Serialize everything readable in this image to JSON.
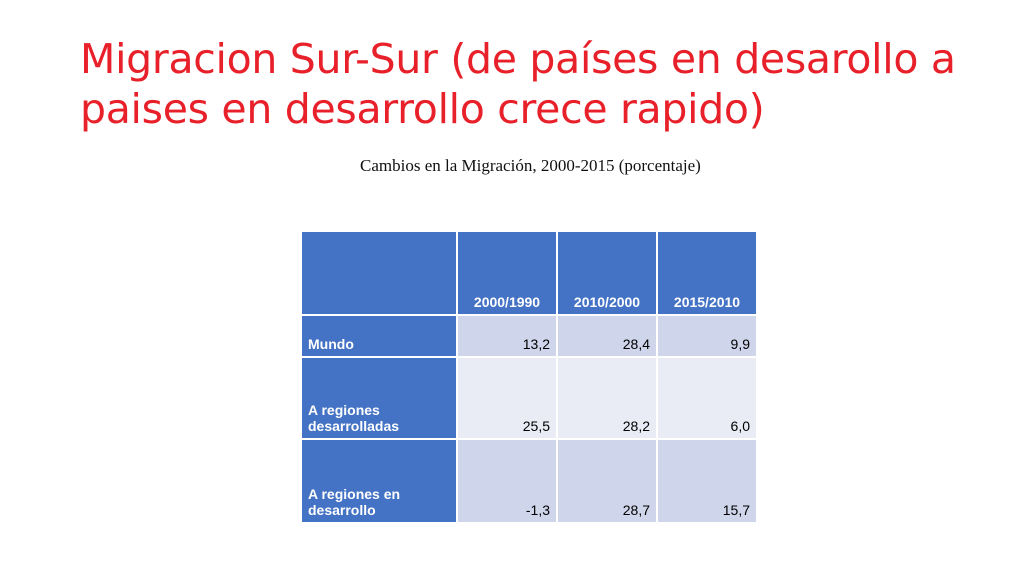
{
  "title": "Migracion Sur-Sur (de países en desarollo a paises en desarrollo crece rapido)",
  "caption": "Cambios en la Migración, 2000-2015 (porcentaje)",
  "table": {
    "columns": [
      "",
      "2000/1990",
      "2010/2000",
      "2015/2010"
    ],
    "rows": [
      {
        "label": "Mundo",
        "values": [
          "13,2",
          "28,4",
          "9,9"
        ]
      },
      {
        "label": "A regiones desarrolladas",
        "values": [
          "25,5",
          "28,2",
          "6,0"
        ]
      },
      {
        "label": "A regiones en desarrollo",
        "values": [
          "-1,3",
          "28,7",
          "15,7"
        ]
      }
    ]
  },
  "colors": {
    "title": "#e8202a",
    "header": "#4472c4",
    "band_dark": "#cfd5ea",
    "band_light": "#e9ebf5"
  }
}
